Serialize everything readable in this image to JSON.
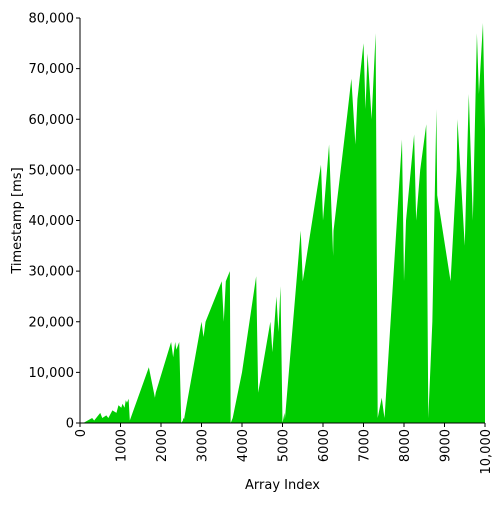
{
  "chart_data": {
    "type": "area",
    "xlabel": "Array Index",
    "ylabel": "Timestamp [ms]",
    "xlim": [
      0,
      10000
    ],
    "ylim": [
      0,
      80000
    ],
    "x_ticks": [
      0,
      1000,
      2000,
      3000,
      4000,
      5000,
      6000,
      7000,
      8000,
      9000,
      10000
    ],
    "x_tick_labels": [
      "0",
      "1000",
      "2000",
      "3000",
      "4000",
      "5000",
      "6000",
      "7000",
      "8000",
      "9000",
      "10,000"
    ],
    "y_ticks": [
      0,
      10000,
      20000,
      30000,
      40000,
      50000,
      60000,
      70000,
      80000
    ],
    "y_tick_labels": [
      "0",
      "10,000",
      "20,000",
      "30,000",
      "40,000",
      "50,000",
      "60,000",
      "70,000",
      "80,000"
    ],
    "grid": false,
    "fill_color": "#00cc00",
    "series": [
      {
        "x": [
          0,
          80,
          300,
          350,
          500,
          550,
          650,
          700,
          800,
          900,
          950,
          1020,
          1050,
          1100,
          1130,
          1160,
          1200,
          1230,
          1700,
          1850,
          1870,
          2250,
          2300,
          2350,
          2380,
          2450,
          2500,
          2540,
          2550,
          2570,
          3000,
          3050,
          3100,
          3500,
          3550,
          3600,
          3700,
          3720,
          3770,
          4000,
          4350,
          4400,
          4700,
          4750,
          4850,
          4900,
          4950,
          5000,
          5050,
          5060,
          5450,
          5500,
          5950,
          6000,
          6150,
          6250,
          6260,
          6600,
          6700,
          6800,
          6850,
          7000,
          7050,
          7100,
          7200,
          7300,
          7350,
          7450,
          7500,
          7520,
          7950,
          8000,
          8050,
          8250,
          8300,
          8400,
          8550,
          8600,
          8700,
          8800,
          8820,
          9150,
          9300,
          9320,
          9500,
          9550,
          9600,
          9700,
          9800,
          9850,
          9950,
          10000
        ],
        "y": [
          0,
          0,
          1000,
          500,
          2000,
          1000,
          1500,
          1000,
          2500,
          2000,
          3500,
          3000,
          3800,
          3000,
          4500,
          4000,
          4800,
          500,
          11000,
          5000,
          6000,
          16000,
          13000,
          16000,
          14500,
          16000,
          0,
          500,
          1000,
          800,
          20000,
          17000,
          20000,
          28000,
          20000,
          28000,
          30000,
          0,
          1000,
          10000,
          29000,
          6000,
          20000,
          14000,
          25000,
          18000,
          27000,
          0,
          2000,
          800,
          38000,
          28000,
          51000,
          40000,
          55000,
          33000,
          38000,
          61000,
          68000,
          55000,
          64000,
          75000,
          62000,
          73000,
          60000,
          77000,
          1000,
          5000,
          2000,
          1000,
          56000,
          28000,
          40000,
          57000,
          40000,
          50000,
          59000,
          1000,
          20000,
          62000,
          45000,
          28000,
          50000,
          60000,
          35000,
          50000,
          65000,
          40000,
          77000,
          65000,
          79000,
          58000
        ]
      }
    ]
  }
}
